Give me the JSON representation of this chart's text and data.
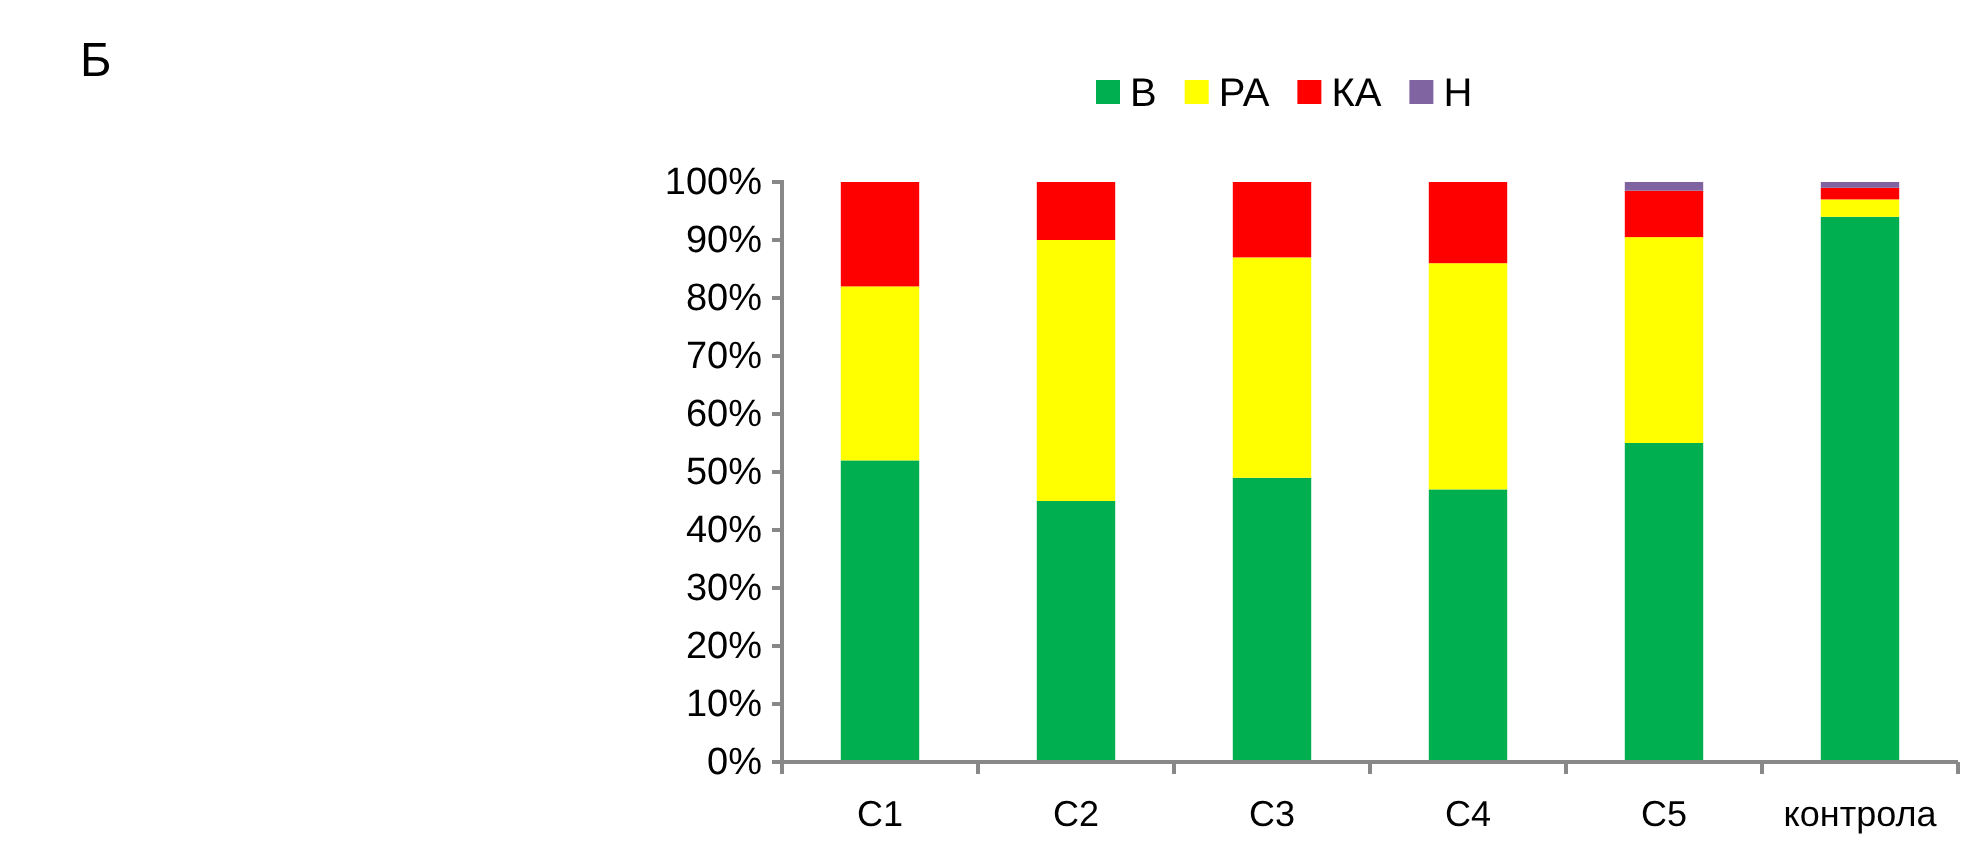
{
  "chart_data": {
    "type": "bar",
    "stacked": true,
    "categories": [
      "C1",
      "C2",
      "C3",
      "C4",
      "C5",
      "контрола"
    ],
    "series": [
      {
        "name": "В",
        "color": "#00b050",
        "values": [
          52,
          45,
          49,
          47,
          55,
          94
        ]
      },
      {
        "name": "РА",
        "color": "#ffff00",
        "values": [
          30,
          45,
          38,
          39,
          35.5,
          3
        ]
      },
      {
        "name": "КА",
        "color": "#ff0000",
        "values": [
          18,
          10,
          13,
          14,
          8,
          2
        ]
      },
      {
        "name": "Н",
        "color": "#8064a2",
        "values": [
          0,
          0,
          0,
          0,
          1.5,
          1
        ]
      }
    ],
    "ylim": [
      0,
      100
    ],
    "yticks": [
      {
        "value": 0,
        "label": "0%"
      },
      {
        "value": 10,
        "label": "10%"
      },
      {
        "value": 20,
        "label": "20%"
      },
      {
        "value": 30,
        "label": "30%"
      },
      {
        "value": 40,
        "label": "40%"
      },
      {
        "value": 50,
        "label": "50%"
      },
      {
        "value": 60,
        "label": "60%"
      },
      {
        "value": 70,
        "label": "70%"
      },
      {
        "value": 80,
        "label": "80%"
      },
      {
        "value": 90,
        "label": "90%"
      },
      {
        "value": 100,
        "label": "100%"
      }
    ],
    "grid": false,
    "legend": "top",
    "annotations": [
      "Б"
    ]
  }
}
